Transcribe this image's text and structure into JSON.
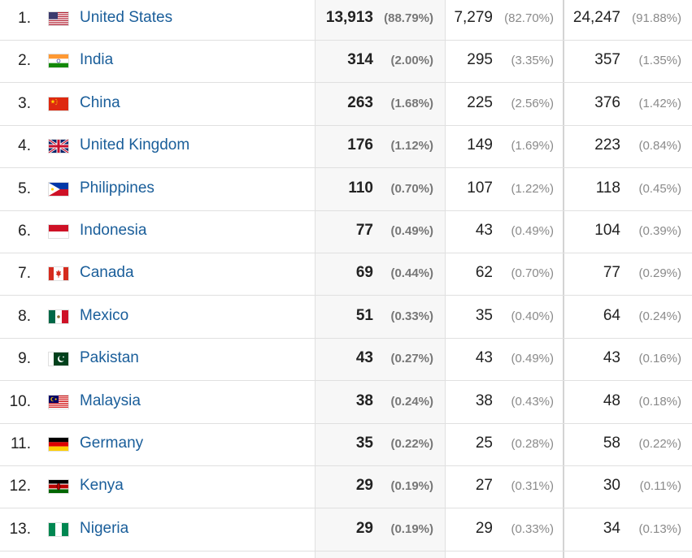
{
  "rows": [
    {
      "rank": "1.",
      "country": "United States",
      "flag": "us-flag-icon",
      "c1": "13,913",
      "c1p": "(88.79%)",
      "c2": "7,279",
      "c2p": "(82.70%)",
      "c3": "24,247",
      "c3p": "(91.88%)"
    },
    {
      "rank": "2.",
      "country": "India",
      "flag": "india-flag-icon",
      "c1": "314",
      "c1p": "(2.00%)",
      "c2": "295",
      "c2p": "(3.35%)",
      "c3": "357",
      "c3p": "(1.35%)"
    },
    {
      "rank": "3.",
      "country": "China",
      "flag": "china-flag-icon",
      "c1": "263",
      "c1p": "(1.68%)",
      "c2": "225",
      "c2p": "(2.56%)",
      "c3": "376",
      "c3p": "(1.42%)"
    },
    {
      "rank": "4.",
      "country": "United Kingdom",
      "flag": "uk-flag-icon",
      "c1": "176",
      "c1p": "(1.12%)",
      "c2": "149",
      "c2p": "(1.69%)",
      "c3": "223",
      "c3p": "(0.84%)"
    },
    {
      "rank": "5.",
      "country": "Philippines",
      "flag": "philippines-flag-icon",
      "c1": "110",
      "c1p": "(0.70%)",
      "c2": "107",
      "c2p": "(1.22%)",
      "c3": "118",
      "c3p": "(0.45%)"
    },
    {
      "rank": "6.",
      "country": "Indonesia",
      "flag": "indonesia-flag-icon",
      "c1": "77",
      "c1p": "(0.49%)",
      "c2": "43",
      "c2p": "(0.49%)",
      "c3": "104",
      "c3p": "(0.39%)"
    },
    {
      "rank": "7.",
      "country": "Canada",
      "flag": "canada-flag-icon",
      "c1": "69",
      "c1p": "(0.44%)",
      "c2": "62",
      "c2p": "(0.70%)",
      "c3": "77",
      "c3p": "(0.29%)"
    },
    {
      "rank": "8.",
      "country": "Mexico",
      "flag": "mexico-flag-icon",
      "c1": "51",
      "c1p": "(0.33%)",
      "c2": "35",
      "c2p": "(0.40%)",
      "c3": "64",
      "c3p": "(0.24%)"
    },
    {
      "rank": "9.",
      "country": "Pakistan",
      "flag": "pakistan-flag-icon",
      "c1": "43",
      "c1p": "(0.27%)",
      "c2": "43",
      "c2p": "(0.49%)",
      "c3": "43",
      "c3p": "(0.16%)"
    },
    {
      "rank": "10.",
      "country": "Malaysia",
      "flag": "malaysia-flag-icon",
      "c1": "38",
      "c1p": "(0.24%)",
      "c2": "38",
      "c2p": "(0.43%)",
      "c3": "48",
      "c3p": "(0.18%)"
    },
    {
      "rank": "11.",
      "country": "Germany",
      "flag": "germany-flag-icon",
      "c1": "35",
      "c1p": "(0.22%)",
      "c2": "25",
      "c2p": "(0.28%)",
      "c3": "58",
      "c3p": "(0.22%)"
    },
    {
      "rank": "12.",
      "country": "Kenya",
      "flag": "kenya-flag-icon",
      "c1": "29",
      "c1p": "(0.19%)",
      "c2": "27",
      "c2p": "(0.31%)",
      "c3": "30",
      "c3p": "(0.11%)"
    },
    {
      "rank": "13.",
      "country": "Nigeria",
      "flag": "nigeria-flag-icon",
      "c1": "29",
      "c1p": "(0.19%)",
      "c2": "29",
      "c2p": "(0.33%)",
      "c3": "34",
      "c3p": "(0.13%)"
    }
  ],
  "colors": {
    "link": "#1a5e9a",
    "grid": "#e0e0e0",
    "shaded_column": "#f7f7f7",
    "pct_text": "#8a8a8a"
  }
}
